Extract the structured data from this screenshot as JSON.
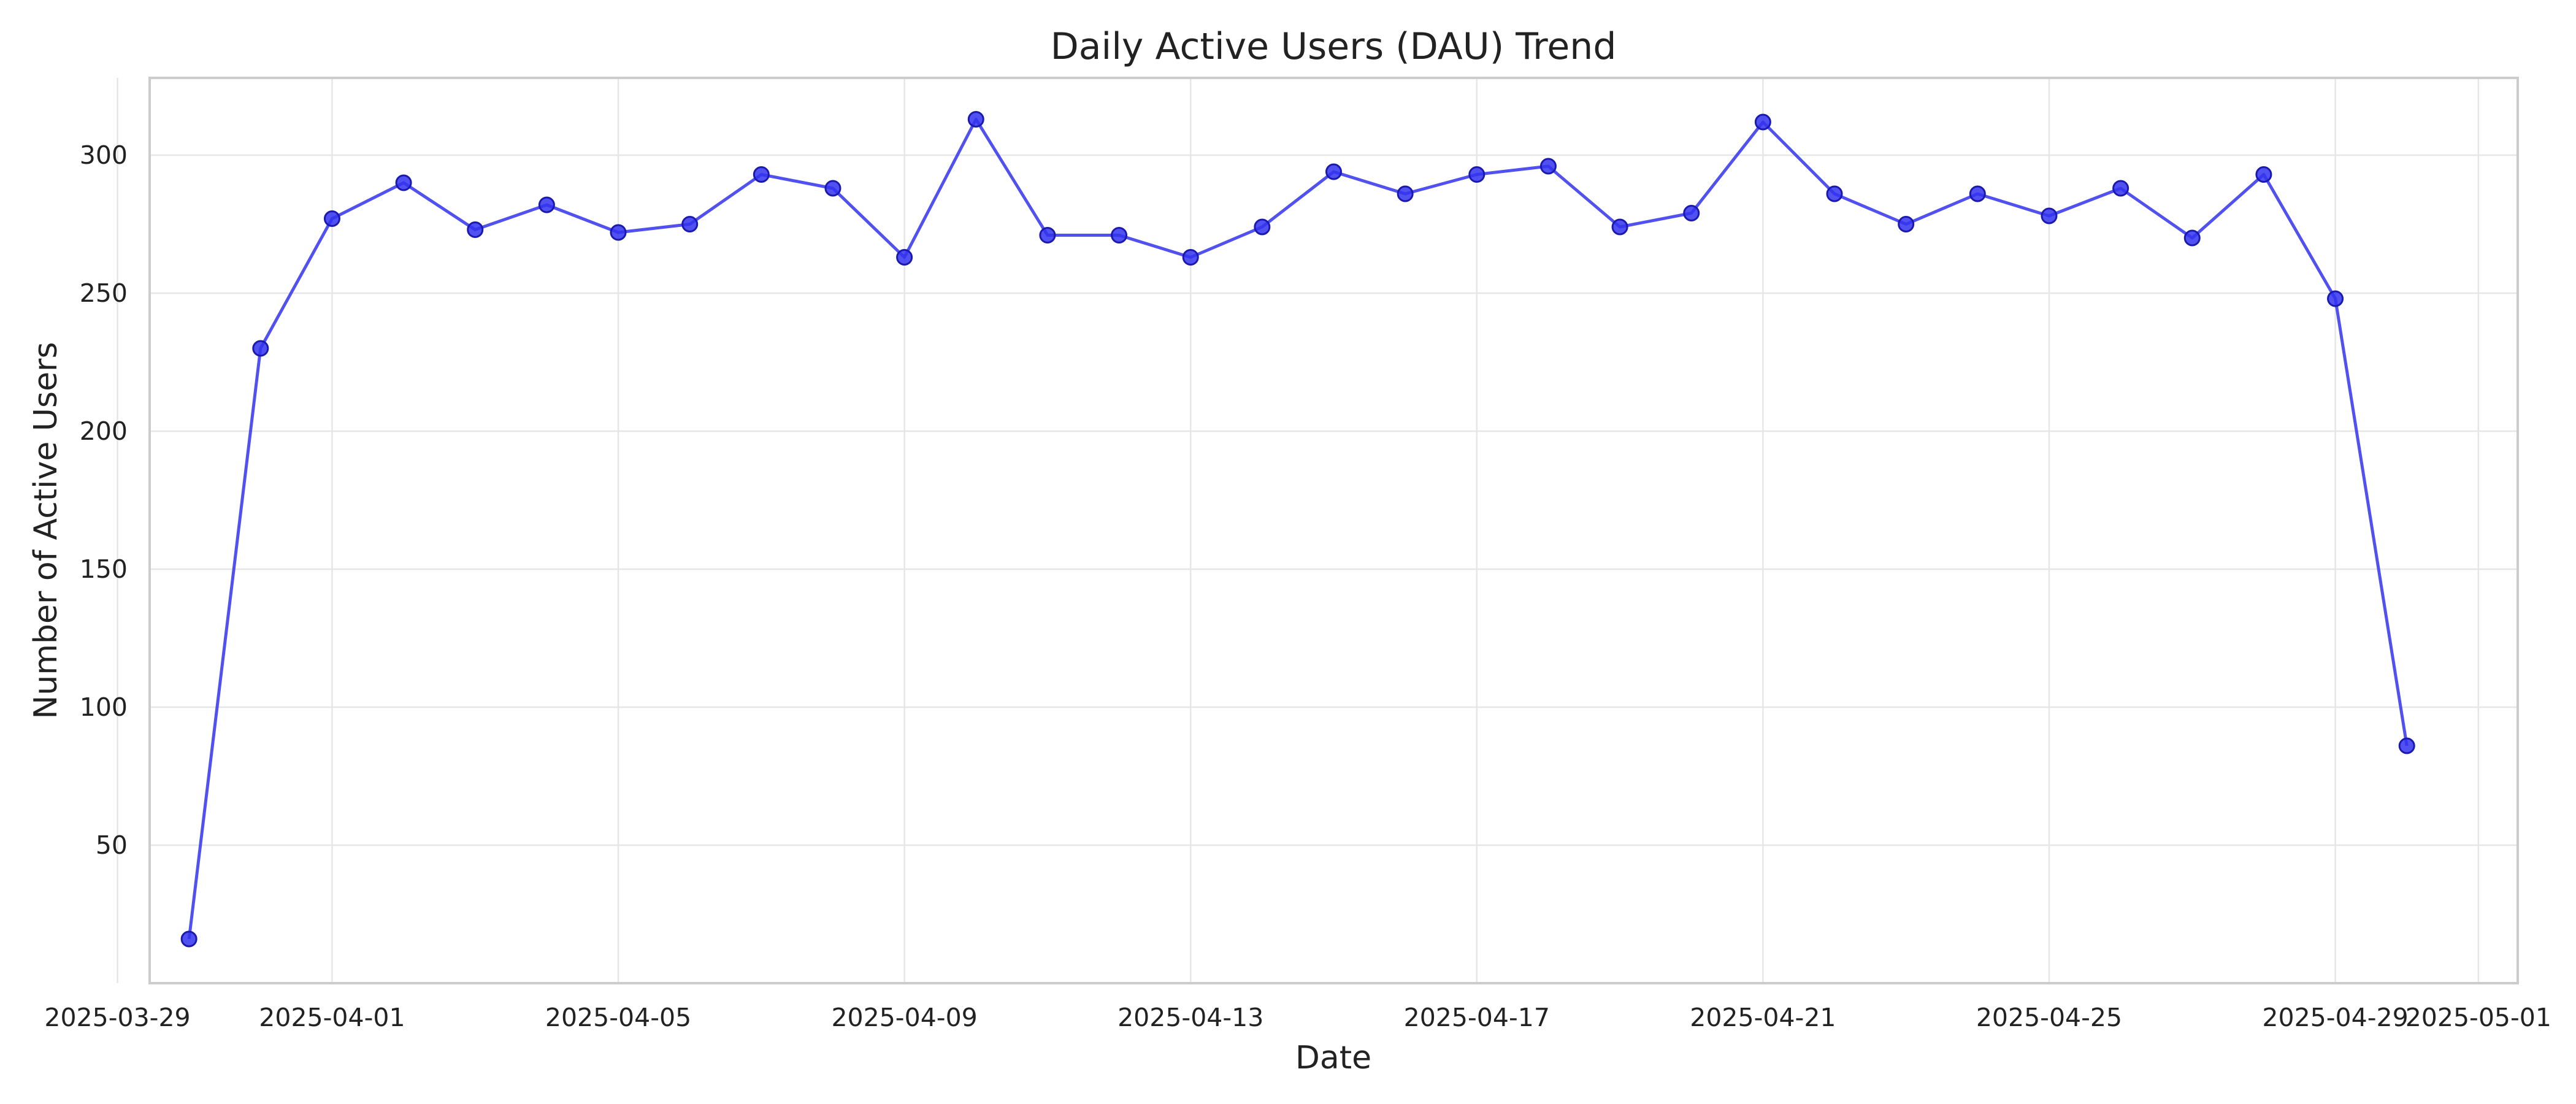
{
  "colors": {
    "series": "#3333ee"
  },
  "chart_data": {
    "type": "line",
    "title": "Daily Active Users (DAU) Trend",
    "xlabel": "Date",
    "ylabel": "Number of Active Users",
    "grid": true,
    "xlim": [
      "2025-03-29",
      "2025-05-01"
    ],
    "ylim": [
      0,
      328
    ],
    "xticks": [
      "2025-03-29",
      "2025-04-01",
      "2025-04-05",
      "2025-04-09",
      "2025-04-13",
      "2025-04-17",
      "2025-04-21",
      "2025-04-25",
      "2025-04-29",
      "2025-05-01"
    ],
    "yticks": [
      50,
      100,
      150,
      200,
      250,
      300
    ],
    "series": [
      {
        "marker": "circle",
        "points": [
          {
            "x": "2025-03-30",
            "y": 16
          },
          {
            "x": "2025-03-31",
            "y": 230
          },
          {
            "x": "2025-04-01",
            "y": 277
          },
          {
            "x": "2025-04-02",
            "y": 290
          },
          {
            "x": "2025-04-03",
            "y": 273
          },
          {
            "x": "2025-04-04",
            "y": 282
          },
          {
            "x": "2025-04-05",
            "y": 272
          },
          {
            "x": "2025-04-06",
            "y": 275
          },
          {
            "x": "2025-04-07",
            "y": 293
          },
          {
            "x": "2025-04-08",
            "y": 288
          },
          {
            "x": "2025-04-09",
            "y": 263
          },
          {
            "x": "2025-04-10",
            "y": 313
          },
          {
            "x": "2025-04-11",
            "y": 271
          },
          {
            "x": "2025-04-12",
            "y": 271
          },
          {
            "x": "2025-04-13",
            "y": 263
          },
          {
            "x": "2025-04-14",
            "y": 274
          },
          {
            "x": "2025-04-15",
            "y": 294
          },
          {
            "x": "2025-04-16",
            "y": 286
          },
          {
            "x": "2025-04-17",
            "y": 293
          },
          {
            "x": "2025-04-18",
            "y": 296
          },
          {
            "x": "2025-04-19",
            "y": 274
          },
          {
            "x": "2025-04-20",
            "y": 279
          },
          {
            "x": "2025-04-21",
            "y": 312
          },
          {
            "x": "2025-04-22",
            "y": 286
          },
          {
            "x": "2025-04-23",
            "y": 275
          },
          {
            "x": "2025-04-24",
            "y": 286
          },
          {
            "x": "2025-04-25",
            "y": 278
          },
          {
            "x": "2025-04-26",
            "y": 288
          },
          {
            "x": "2025-04-27",
            "y": 270
          },
          {
            "x": "2025-04-28",
            "y": 293
          },
          {
            "x": "2025-04-29",
            "y": 248
          },
          {
            "x": "2025-04-30",
            "y": 86
          }
        ]
      }
    ]
  }
}
